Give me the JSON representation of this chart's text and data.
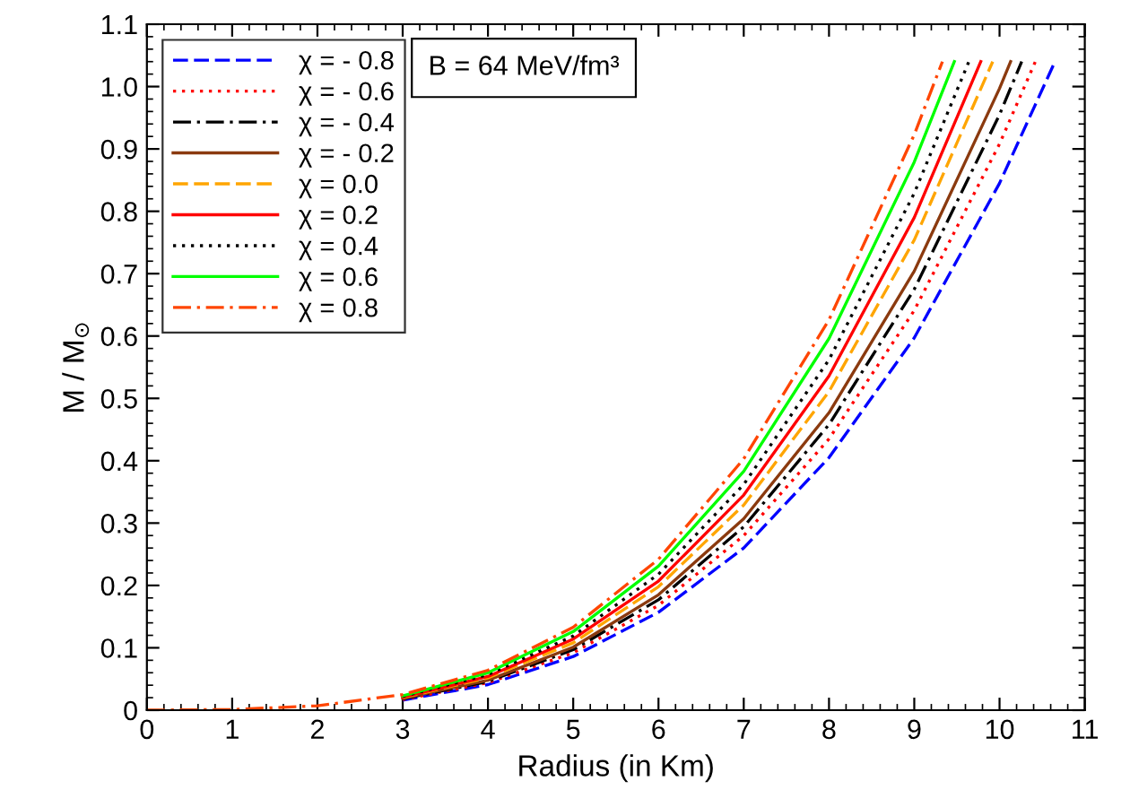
{
  "chart_data": {
    "type": "line",
    "xlabel": "Radius (in Km)",
    "ylabel": "M / M$_{⊙}$",
    "xlim": [
      0,
      11
    ],
    "xticks": [
      0,
      1,
      2,
      3,
      4,
      5,
      6,
      7,
      8,
      9,
      10,
      11
    ],
    "ylim": [
      0,
      1.1
    ],
    "yticks": [
      0,
      0.1,
      0.2,
      0.3,
      0.4,
      0.5,
      0.6,
      0.7,
      0.8,
      0.9,
      {
        "value": 1.0,
        "label": "1.0"
      },
      1.1
    ],
    "grid": false,
    "legend": "top left",
    "marker": "none",
    "annotations": [
      "B = 64 MeV/fm³"
    ],
    "series": [
      {
        "name": "χ = - 0.8",
        "color": "#0000ff",
        "line_style": "dashed",
        "x": [
          3,
          4,
          5,
          6,
          7,
          8,
          9,
          10,
          10.65
        ],
        "values": [
          0.016,
          0.041,
          0.086,
          0.157,
          0.26,
          0.405,
          0.597,
          0.845,
          1.04
        ]
      },
      {
        "name": "χ = - 0.6",
        "color": "#ff0000",
        "line_style": "dotted",
        "x": [
          3,
          4,
          5,
          6,
          7,
          8,
          9,
          10,
          10.42
        ],
        "values": [
          0.017,
          0.044,
          0.092,
          0.168,
          0.28,
          0.435,
          0.641,
          0.908,
          1.04
        ]
      },
      {
        "name": "χ = - 0.4",
        "color": "#000000",
        "line_style": "dashdot",
        "x": [
          3,
          4,
          5,
          6,
          7,
          8,
          9,
          10,
          10.26
        ],
        "values": [
          0.018,
          0.046,
          0.097,
          0.177,
          0.294,
          0.458,
          0.675,
          0.955,
          1.04
        ]
      },
      {
        "name": "χ = - 0.2",
        "color": "#8b3a0f",
        "line_style": "solid",
        "x": [
          3,
          4,
          5,
          6,
          7,
          8,
          9,
          10,
          10.13
        ],
        "values": [
          0.019,
          0.048,
          0.101,
          0.185,
          0.307,
          0.477,
          0.704,
          0.997,
          1.04
        ]
      },
      {
        "name": "χ = 0.0",
        "color": "#ffa500",
        "line_style": "dashed",
        "x": [
          3,
          4,
          5,
          6,
          7,
          8,
          9,
          9.92
        ],
        "values": [
          0.02,
          0.052,
          0.108,
          0.198,
          0.329,
          0.511,
          0.754,
          1.04
        ]
      },
      {
        "name": "χ = 0.2",
        "color": "#ff0000",
        "line_style": "solid",
        "x": [
          3,
          4,
          5,
          6,
          7,
          8,
          9,
          9.78
        ],
        "values": [
          0.021,
          0.054,
          0.114,
          0.207,
          0.345,
          0.536,
          0.79,
          1.04
        ]
      },
      {
        "name": "χ = 0.4",
        "color": "#000000",
        "line_style": "dotted",
        "x": [
          3,
          4,
          5,
          6,
          7,
          8,
          9,
          9.64
        ],
        "values": [
          0.022,
          0.057,
          0.119,
          0.218,
          0.362,
          0.562,
          0.829,
          1.04
        ]
      },
      {
        "name": "χ = 0.6",
        "color": "#00ff00",
        "line_style": "solid",
        "x": [
          3,
          4,
          5,
          6,
          7,
          8,
          9,
          9.47
        ],
        "values": [
          0.023,
          0.06,
          0.126,
          0.231,
          0.383,
          0.596,
          0.879,
          1.04
        ]
      },
      {
        "name": "χ = 0.8",
        "color": "#ff4500",
        "line_style": "dashdot",
        "x": [
          0,
          1,
          2,
          3,
          4,
          5,
          6,
          7,
          8,
          9,
          9.33
        ],
        "values": [
          0,
          0.001,
          0.007,
          0.025,
          0.064,
          0.133,
          0.242,
          0.403,
          0.626,
          0.923,
          1.04
        ]
      }
    ]
  }
}
